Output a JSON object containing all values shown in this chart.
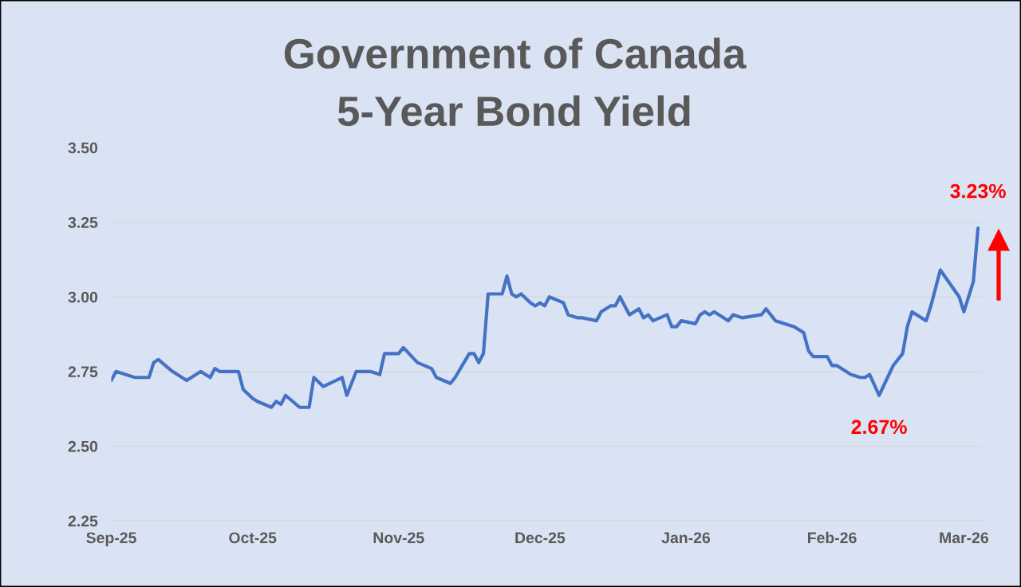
{
  "chart_data": {
    "type": "line",
    "title": "Government of Canada\n5-Year Bond Yield",
    "x": [
      "2025-09-01",
      "2025-09-02",
      "2025-09-06",
      "2025-09-09",
      "2025-09-10",
      "2025-09-11",
      "2025-09-14",
      "2025-09-17",
      "2025-09-20",
      "2025-09-22",
      "2025-09-23",
      "2025-09-24",
      "2025-09-28",
      "2025-09-29",
      "2025-10-01",
      "2025-10-02",
      "2025-10-05",
      "2025-10-06",
      "2025-10-07",
      "2025-10-08",
      "2025-10-11",
      "2025-10-13",
      "2025-10-14",
      "2025-10-16",
      "2025-10-20",
      "2025-10-21",
      "2025-10-23",
      "2025-10-26",
      "2025-10-28",
      "2025-10-29",
      "2025-11-01",
      "2025-11-02",
      "2025-11-05",
      "2025-11-08",
      "2025-11-09",
      "2025-11-12",
      "2025-11-13",
      "2025-11-16",
      "2025-11-17",
      "2025-11-18",
      "2025-11-19",
      "2025-11-20",
      "2025-11-23",
      "2025-11-24",
      "2025-11-25",
      "2025-11-26",
      "2025-11-27",
      "2025-11-29",
      "2025-11-30",
      "2025-12-01",
      "2025-12-02",
      "2025-12-03",
      "2025-12-06",
      "2025-12-07",
      "2025-12-09",
      "2025-12-10",
      "2025-12-13",
      "2025-12-14",
      "2025-12-16",
      "2025-12-17",
      "2025-12-18",
      "2025-12-20",
      "2025-12-22",
      "2025-12-23",
      "2025-12-24",
      "2025-12-25",
      "2025-12-28",
      "2025-12-29",
      "2025-12-30",
      "2025-12-31",
      "2026-01-03",
      "2026-01-04",
      "2026-01-05",
      "2026-01-06",
      "2026-01-07",
      "2026-01-10",
      "2026-01-11",
      "2026-01-13",
      "2026-01-17",
      "2026-01-18",
      "2026-01-20",
      "2026-01-24",
      "2026-01-26",
      "2026-01-27",
      "2026-01-28",
      "2026-01-31",
      "2026-02-01",
      "2026-02-02",
      "2026-02-05",
      "2026-02-07",
      "2026-02-08",
      "2026-02-09",
      "2026-02-11",
      "2026-02-14",
      "2026-02-16",
      "2026-02-17",
      "2026-02-18",
      "2026-02-21",
      "2026-02-22",
      "2026-02-24",
      "2026-02-28",
      "2026-03-01",
      "2026-03-03",
      "2026-03-04"
    ],
    "series": [
      {
        "color": "#4472c4",
        "values": [
          2.72,
          2.75,
          2.73,
          2.73,
          2.78,
          2.79,
          2.75,
          2.72,
          2.75,
          2.73,
          2.76,
          2.75,
          2.75,
          2.69,
          2.66,
          2.65,
          2.63,
          2.65,
          2.64,
          2.67,
          2.63,
          2.63,
          2.73,
          2.7,
          2.73,
          2.67,
          2.75,
          2.75,
          2.74,
          2.81,
          2.81,
          2.83,
          2.78,
          2.76,
          2.73,
          2.71,
          2.73,
          2.81,
          2.81,
          2.78,
          2.81,
          3.01,
          3.01,
          3.07,
          3.01,
          3.0,
          3.01,
          2.98,
          2.97,
          2.98,
          2.97,
          3.0,
          2.98,
          2.94,
          2.93,
          2.93,
          2.92,
          2.95,
          2.97,
          2.97,
          3.0,
          2.94,
          2.96,
          2.93,
          2.94,
          2.92,
          2.94,
          2.9,
          2.9,
          2.92,
          2.91,
          2.94,
          2.95,
          2.94,
          2.95,
          2.92,
          2.94,
          2.93,
          2.94,
          2.96,
          2.92,
          2.9,
          2.88,
          2.82,
          2.8,
          2.8,
          2.77,
          2.77,
          2.74,
          2.73,
          2.73,
          2.74,
          2.67,
          2.77,
          2.81,
          2.9,
          2.95,
          2.92,
          2.97,
          3.09,
          3.0,
          2.95,
          3.05,
          3.23
        ]
      }
    ],
    "xlim": [
      "2025-09-01",
      "2026-03-05"
    ],
    "xticks": [
      {
        "value": "2025-09-01",
        "label": "Sep-25"
      },
      {
        "value": "2025-10-01",
        "label": "Oct-25"
      },
      {
        "value": "2025-11-01",
        "label": "Nov-25"
      },
      {
        "value": "2025-12-01",
        "label": "Dec-25"
      },
      {
        "value": "2026-01-01",
        "label": "Jan-26"
      },
      {
        "value": "2026-02-01",
        "label": "Feb-26"
      },
      {
        "value": "2026-03-01",
        "label": "Mar-26"
      }
    ],
    "ylim": [
      2.25,
      3.5
    ],
    "yticks": [
      {
        "value": 2.25,
        "label": "2.25"
      },
      {
        "value": 2.5,
        "label": "2.50"
      },
      {
        "value": 2.75,
        "label": "2.75"
      },
      {
        "value": 3.0,
        "label": "3.00"
      },
      {
        "value": 3.25,
        "label": "3.25"
      },
      {
        "value": 3.5,
        "label": "3.50"
      }
    ],
    "grid": "y",
    "legend": false,
    "marker": "none",
    "line_style": "solid",
    "annotations": [
      {
        "text": "3.23%",
        "x": "2026-03-04",
        "y": 3.23
      },
      {
        "text": "2.67%",
        "x": "2026-02-11",
        "y": 2.67
      }
    ]
  }
}
